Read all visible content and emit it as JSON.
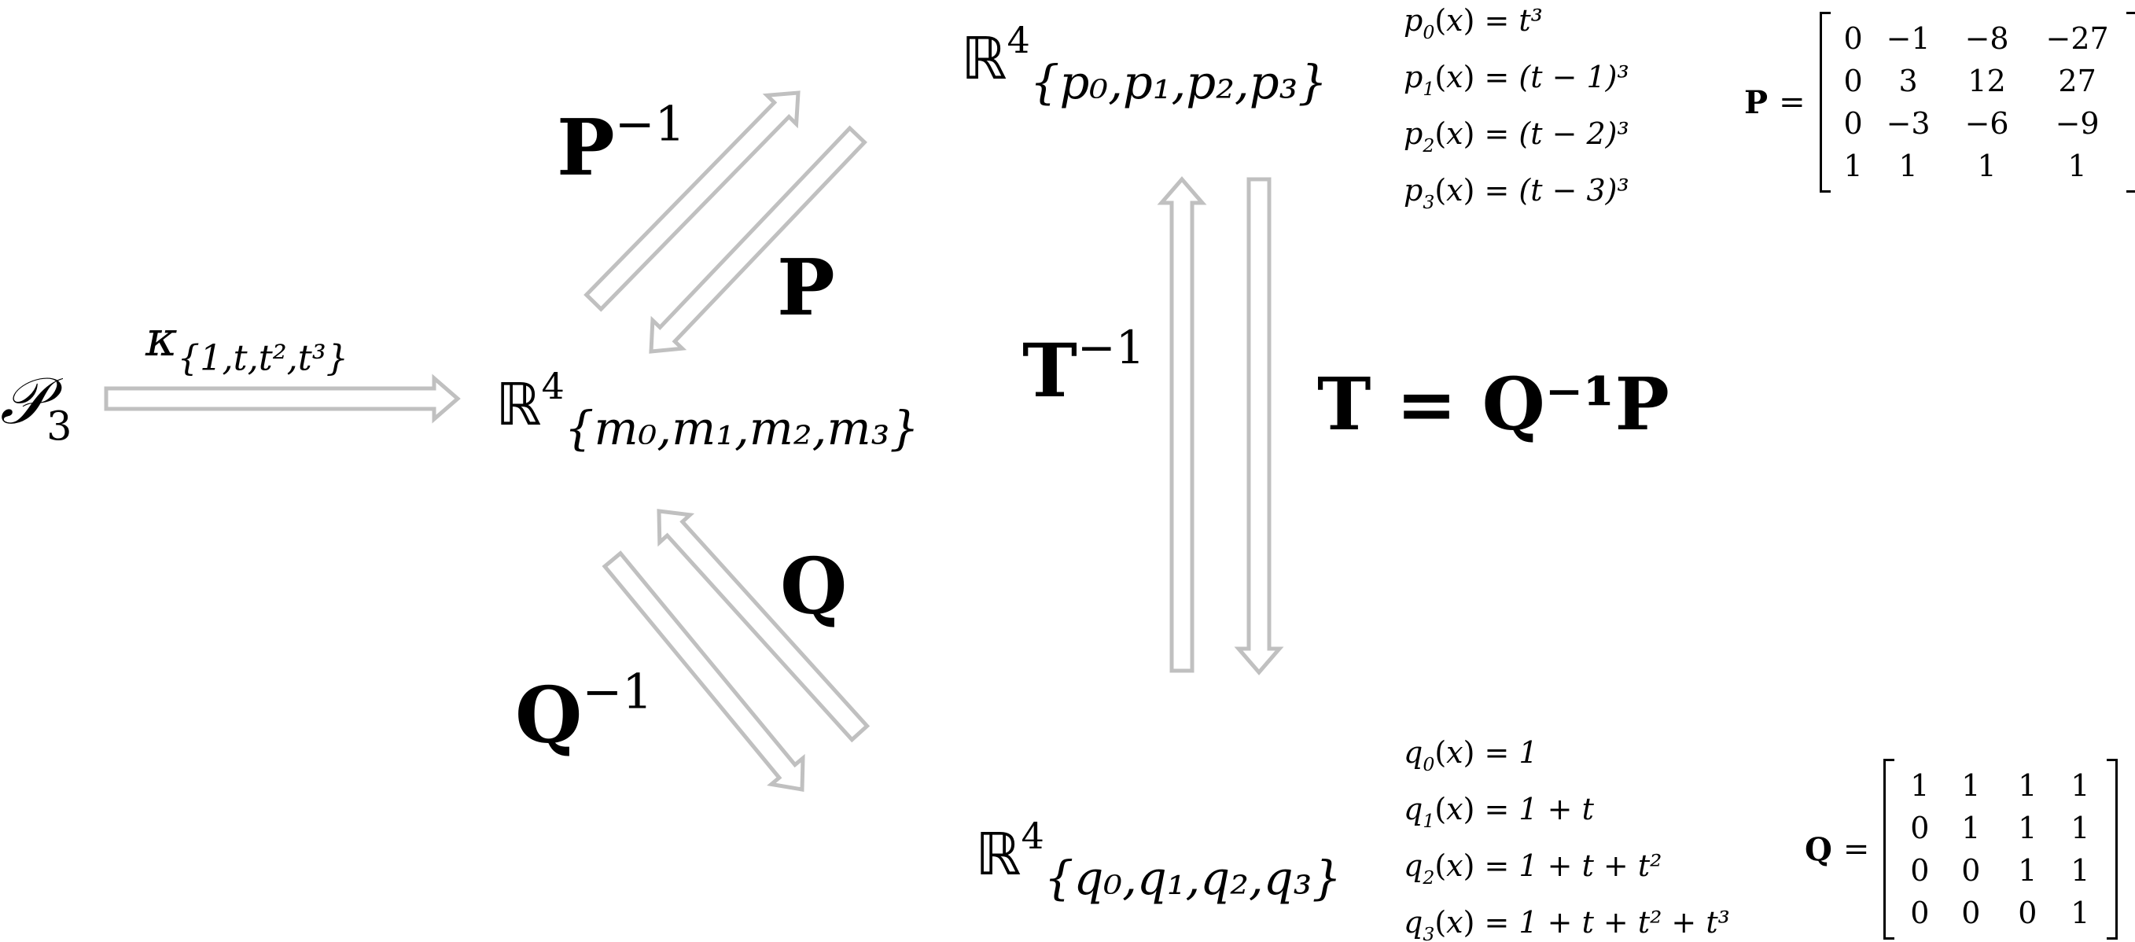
{
  "spaces": {
    "p3": {
      "main": "𝒫",
      "sub": "3"
    },
    "m": {
      "main": "ℝ",
      "sup": "4",
      "sub": "{m₀,m₁,m₂,m₃}"
    },
    "p": {
      "main": "ℝ",
      "sup": "4",
      "sub": "{p₀,p₁,p₂,p₃}"
    },
    "q": {
      "main": "ℝ",
      "sup": "4",
      "sub": "{q₀,q₁,q₂,q₃}"
    }
  },
  "maps": {
    "kappa": {
      "main": "κ",
      "sub": "{1,t,t²,t³}"
    },
    "p_inv": {
      "main": "P",
      "sup": "−1"
    },
    "p": {
      "main": "P"
    },
    "q": {
      "main": "Q"
    },
    "q_inv": {
      "main": "Q",
      "sup": "−1"
    },
    "t_inv": {
      "main": "T",
      "sup": "−1"
    },
    "t_def": "T = Q⁻¹P"
  },
  "p_basis": [
    {
      "name": "p",
      "idx": "0",
      "rhs": "t³"
    },
    {
      "name": "p",
      "idx": "1",
      "rhs": "(t − 1)³"
    },
    {
      "name": "p",
      "idx": "2",
      "rhs": "(t − 2)³"
    },
    {
      "name": "p",
      "idx": "3",
      "rhs": "(t − 3)³"
    }
  ],
  "q_basis": [
    {
      "name": "q",
      "idx": "0",
      "rhs": "1"
    },
    {
      "name": "q",
      "idx": "1",
      "rhs": "1 + t"
    },
    {
      "name": "q",
      "idx": "2",
      "rhs": "1 + t + t²"
    },
    {
      "name": "q",
      "idx": "3",
      "rhs": "1 + t + t² + t³"
    }
  ],
  "matrix_p": {
    "name": "P",
    "rows": [
      [
        "0",
        "−1",
        "−8",
        "−27"
      ],
      [
        "0",
        "3",
        "12",
        "27"
      ],
      [
        "0",
        "−3",
        "−6",
        "−9"
      ],
      [
        "1",
        "1",
        "1",
        "1"
      ]
    ]
  },
  "matrix_q": {
    "name": "Q",
    "rows": [
      [
        "1",
        "1",
        "1",
        "1"
      ],
      [
        "0",
        "1",
        "1",
        "1"
      ],
      [
        "0",
        "0",
        "1",
        "1"
      ],
      [
        "0",
        "0",
        "0",
        "1"
      ]
    ]
  },
  "colors": {
    "arrow": "#c0c0c0",
    "text": "#000000"
  }
}
